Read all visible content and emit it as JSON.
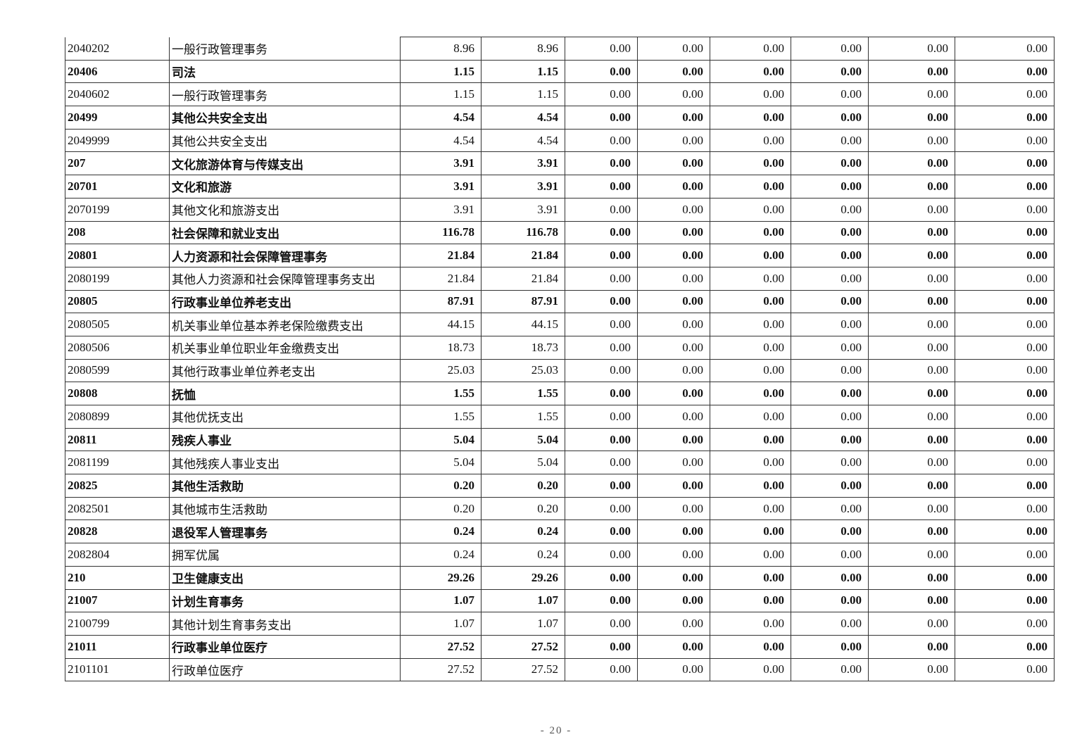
{
  "table": {
    "rows": [
      {
        "code": "2040202",
        "name": "一般行政管理事务",
        "v1": "8.96",
        "v2": "8.96",
        "bold": false
      },
      {
        "code": "20406",
        "name": "司法",
        "v1": "1.15",
        "v2": "1.15",
        "bold": true
      },
      {
        "code": "2040602",
        "name": "一般行政管理事务",
        "v1": "1.15",
        "v2": "1.15",
        "bold": false
      },
      {
        "code": "20499",
        "name": "其他公共安全支出",
        "v1": "4.54",
        "v2": "4.54",
        "bold": true
      },
      {
        "code": "2049999",
        "name": "其他公共安全支出",
        "v1": "4.54",
        "v2": "4.54",
        "bold": false
      },
      {
        "code": "207",
        "name": "文化旅游体育与传媒支出",
        "v1": "3.91",
        "v2": "3.91",
        "bold": true
      },
      {
        "code": "20701",
        "name": "文化和旅游",
        "v1": "3.91",
        "v2": "3.91",
        "bold": true
      },
      {
        "code": "2070199",
        "name": "其他文化和旅游支出",
        "v1": "3.91",
        "v2": "3.91",
        "bold": false
      },
      {
        "code": "208",
        "name": "社会保障和就业支出",
        "v1": "116.78",
        "v2": "116.78",
        "bold": true
      },
      {
        "code": "20801",
        "name": "人力资源和社会保障管理事务",
        "v1": "21.84",
        "v2": "21.84",
        "bold": true
      },
      {
        "code": "2080199",
        "name": "其他人力资源和社会保障管理事务支出",
        "v1": "21.84",
        "v2": "21.84",
        "bold": false
      },
      {
        "code": "20805",
        "name": "行政事业单位养老支出",
        "v1": "87.91",
        "v2": "87.91",
        "bold": true
      },
      {
        "code": "2080505",
        "name": "机关事业单位基本养老保险缴费支出",
        "v1": "44.15",
        "v2": "44.15",
        "bold": false
      },
      {
        "code": "2080506",
        "name": "机关事业单位职业年金缴费支出",
        "v1": "18.73",
        "v2": "18.73",
        "bold": false
      },
      {
        "code": "2080599",
        "name": "其他行政事业单位养老支出",
        "v1": "25.03",
        "v2": "25.03",
        "bold": false
      },
      {
        "code": "20808",
        "name": "抚恤",
        "v1": "1.55",
        "v2": "1.55",
        "bold": true
      },
      {
        "code": "2080899",
        "name": "其他优抚支出",
        "v1": "1.55",
        "v2": "1.55",
        "bold": false
      },
      {
        "code": "20811",
        "name": "残疾人事业",
        "v1": "5.04",
        "v2": "5.04",
        "bold": true
      },
      {
        "code": "2081199",
        "name": "其他残疾人事业支出",
        "v1": "5.04",
        "v2": "5.04",
        "bold": false
      },
      {
        "code": "20825",
        "name": "其他生活救助",
        "v1": "0.20",
        "v2": "0.20",
        "bold": true
      },
      {
        "code": "2082501",
        "name": "其他城市生活救助",
        "v1": "0.20",
        "v2": "0.20",
        "bold": false
      },
      {
        "code": "20828",
        "name": "退役军人管理事务",
        "v1": "0.24",
        "v2": "0.24",
        "bold": true
      },
      {
        "code": "2082804",
        "name": "拥军优属",
        "v1": "0.24",
        "v2": "0.24",
        "bold": false
      },
      {
        "code": "210",
        "name": "卫生健康支出",
        "v1": "29.26",
        "v2": "29.26",
        "bold": true
      },
      {
        "code": "21007",
        "name": "计划生育事务",
        "v1": "1.07",
        "v2": "1.07",
        "bold": true
      },
      {
        "code": "2100799",
        "name": "其他计划生育事务支出",
        "v1": "1.07",
        "v2": "1.07",
        "bold": false
      },
      {
        "code": "21011",
        "name": "行政事业单位医疗",
        "v1": "27.52",
        "v2": "27.52",
        "bold": true
      },
      {
        "code": "2101101",
        "name": "行政单位医疗",
        "v1": "27.52",
        "v2": "27.52",
        "bold": false
      }
    ],
    "zero_value": "0.00"
  },
  "page_number": "- 20 -"
}
